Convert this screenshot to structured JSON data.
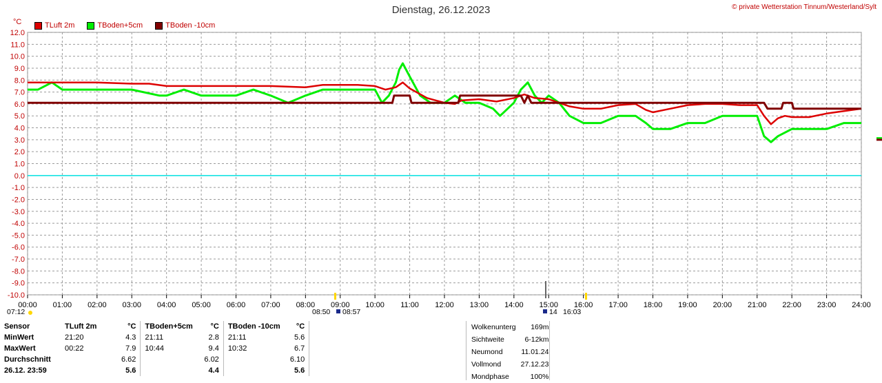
{
  "header": {
    "title": "Dienstag, 26.12.2023",
    "copyright": "© private Wetterstation Tinnum/Westerland/Sylt",
    "unit": "°C"
  },
  "colors": {
    "tluft": "#dd0000",
    "tboden5": "#00ee00",
    "tboden10": "#800000",
    "zero": "#00e0e0",
    "grid": "#999999"
  },
  "chart_data": {
    "type": "line",
    "title": "Dienstag, 26.12.2023",
    "ylabel": "°C",
    "ylim": [
      -10,
      12
    ],
    "xlim": [
      0,
      24
    ],
    "grid": true,
    "legend": "top-left",
    "y_ticks": [
      "12.0",
      "11.0",
      "10.0",
      "9.0",
      "8.0",
      "7.0",
      "6.0",
      "5.0",
      "4.0",
      "3.0",
      "2.0",
      "1.0",
      "0.0",
      "-1.0",
      "-2.0",
      "-3.0",
      "-4.0",
      "-5.0",
      "-6.0",
      "-7.0",
      "-8.0",
      "-9.0",
      "-10.0"
    ],
    "x_ticks": [
      "00:00",
      "01:00",
      "02:00",
      "03:00",
      "04:00",
      "05:00",
      "06:00",
      "07:00",
      "08:00",
      "09:00",
      "10:00",
      "11:00",
      "12:00",
      "13:00",
      "14:00",
      "15:00",
      "16:00",
      "17:00",
      "18:00",
      "19:00",
      "20:00",
      "21:00",
      "22:00",
      "23:00",
      "24:00"
    ],
    "series": [
      {
        "name": "TLuft 2m",
        "x": [
          0,
          0.5,
          1,
          2,
          3,
          3.5,
          4,
          5,
          6,
          7,
          8,
          8.5,
          9,
          9.5,
          10,
          10.3,
          10.6,
          10.8,
          11,
          11.5,
          12,
          12.3,
          12.5,
          13,
          13.5,
          14,
          14.3,
          14.6,
          15,
          15.3,
          15.6,
          16,
          16.5,
          17,
          17.5,
          17.8,
          18,
          18.5,
          19,
          19.5,
          20,
          20.5,
          21,
          21.2,
          21.4,
          21.6,
          21.8,
          22,
          22.5,
          23,
          23.5,
          24
        ],
        "values": [
          7.8,
          7.8,
          7.8,
          7.8,
          7.7,
          7.7,
          7.5,
          7.5,
          7.5,
          7.5,
          7.4,
          7.6,
          7.6,
          7.6,
          7.5,
          7.2,
          7.4,
          7.8,
          7.3,
          6.5,
          6.1,
          6.0,
          6.3,
          6.4,
          6.2,
          6.5,
          6.8,
          6.5,
          6.4,
          6.1,
          5.8,
          5.6,
          5.6,
          5.9,
          6.0,
          5.5,
          5.3,
          5.6,
          5.9,
          6.0,
          6.0,
          5.9,
          5.9,
          5.0,
          4.3,
          4.8,
          5.0,
          4.9,
          4.9,
          5.2,
          5.4,
          5.6
        ]
      },
      {
        "name": "TBoden+5cm",
        "x": [
          0,
          0.3,
          0.7,
          1,
          2,
          3,
          3.8,
          4,
          4.5,
          5,
          6,
          6.5,
          7,
          7.5,
          8,
          8.5,
          9,
          9.5,
          10,
          10.2,
          10.4,
          10.6,
          10.7,
          10.8,
          11,
          11.3,
          11.6,
          12,
          12.3,
          12.6,
          13,
          13.4,
          13.6,
          14,
          14.2,
          14.4,
          14.6,
          14.8,
          15,
          15.3,
          15.6,
          16,
          16.5,
          17,
          17.5,
          17.8,
          18,
          18.5,
          19,
          19.5,
          20,
          20.5,
          21,
          21.2,
          21.4,
          21.6,
          22,
          22.5,
          23,
          23.5,
          24
        ],
        "values": [
          7.2,
          7.2,
          7.8,
          7.2,
          7.2,
          7.2,
          6.7,
          6.7,
          7.2,
          6.7,
          6.7,
          7.2,
          6.7,
          6.1,
          6.7,
          7.2,
          7.2,
          7.2,
          7.2,
          6.1,
          6.7,
          7.8,
          8.9,
          9.4,
          8.3,
          6.7,
          6.1,
          6.1,
          6.7,
          6.1,
          6.1,
          5.6,
          5.0,
          6.1,
          7.2,
          7.8,
          6.7,
          6.1,
          6.7,
          6.1,
          5.0,
          4.4,
          4.4,
          5.0,
          5.0,
          4.4,
          3.9,
          3.9,
          4.4,
          4.4,
          5.0,
          5.0,
          5.0,
          3.3,
          2.8,
          3.3,
          3.9,
          3.9,
          3.9,
          4.4,
          4.4
        ]
      },
      {
        "name": "TBoden -10cm",
        "x": [
          0,
          10.5,
          10.55,
          11,
          11.05,
          12.4,
          12.45,
          14.2,
          14.3,
          14.4,
          14.5,
          20.5,
          21.2,
          21.3,
          21.7,
          21.75,
          22,
          22.05,
          24
        ],
        "values": [
          6.1,
          6.1,
          6.7,
          6.7,
          6.1,
          6.1,
          6.7,
          6.7,
          6.1,
          6.7,
          6.1,
          6.1,
          6.1,
          5.6,
          5.6,
          6.1,
          6.1,
          5.6,
          5.6
        ]
      }
    ]
  },
  "sun": {
    "rise": "07:12",
    "noon_left": "08:50",
    "noon_right": "08:57",
    "moon_left": "14",
    "moon_right": "16:03"
  },
  "stats": {
    "headers": [
      "Sensor",
      "TLuft 2m",
      "°C",
      "TBoden+5cm",
      "°C",
      "TBoden -10cm",
      "°C"
    ],
    "rows": [
      {
        "label": "MinWert",
        "c1t": "21:20",
        "c1v": "4.3",
        "c2t": "21:11",
        "c2v": "2.8",
        "c3t": "21:11",
        "c3v": "5.6"
      },
      {
        "label": "MaxWert",
        "c1t": "00:22",
        "c1v": "7.9",
        "c2t": "10:44",
        "c2v": "9.4",
        "c3t": "10:32",
        "c3v": "6.7"
      },
      {
        "label": "Durchschnitt",
        "c1t": "",
        "c1v": "6.62",
        "c2t": "",
        "c2v": "6.02",
        "c3t": "",
        "c3v": "6.10"
      },
      {
        "label": "26.12. 23:59",
        "c1t": "",
        "c1v": "5.6",
        "c2t": "",
        "c2v": "4.4",
        "c3t": "",
        "c3v": "5.6"
      }
    ]
  },
  "astro": [
    {
      "k": "Wolkenunterg",
      "v": "169m"
    },
    {
      "k": "Sichtweite",
      "v": "6-12km"
    },
    {
      "k": "Neumond",
      "v": "11.01.24"
    },
    {
      "k": "Vollmond",
      "v": "27.12.23"
    },
    {
      "k": "Mondphase",
      "v": "100%"
    }
  ]
}
